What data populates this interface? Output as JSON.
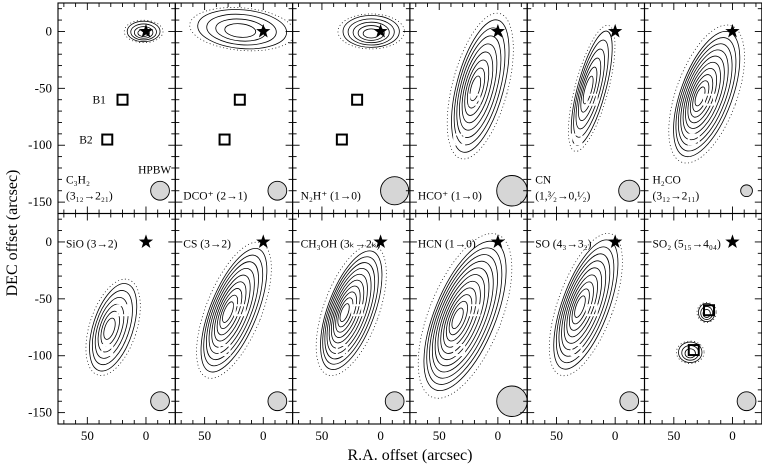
{
  "chart_data": {
    "type": "contour-map-grid",
    "xlabel": "R.A. offset (arcsec)",
    "ylabel": "DEC offset (arcsec)",
    "xlim": [
      75,
      -25
    ],
    "ylim": [
      -160,
      25
    ],
    "x_ticks": [
      50,
      0
    ],
    "y_ticks": [
      0,
      -50,
      -100,
      -150
    ],
    "markers": {
      "star": {
        "x": 0,
        "y": 0
      },
      "B1": {
        "x": 20,
        "y": -60,
        "label": "B1"
      },
      "B2": {
        "x": 33,
        "y": -95,
        "label": "B2"
      },
      "hpbw_label": "HPBW"
    },
    "panels": [
      {
        "molecule": "C₃H₂",
        "transition": "(3₁₂→2₂₁)",
        "beam": 8,
        "show_labels": true,
        "box_color": "black",
        "blobs": [
          {
            "cx": 2,
            "cy": 0,
            "rx": 14,
            "ry": 9,
            "angle": 0,
            "levels": 4
          }
        ]
      },
      {
        "molecule": "DCO⁺",
        "transition": "(2→1)",
        "beam": 8,
        "box_color": "black",
        "blobs": [
          {
            "cx": 18,
            "cy": 2,
            "rx": 38,
            "ry": 17,
            "angle": 5,
            "levels": 4
          }
        ]
      },
      {
        "molecule": "N₂H⁺",
        "transition": "(1→0)",
        "beam": 12,
        "box_color": "black",
        "blobs": [
          {
            "cx": 8,
            "cy": 0,
            "rx": 24,
            "ry": 14,
            "angle": 0,
            "levels": 5
          }
        ]
      },
      {
        "molecule": "HCO⁺",
        "transition": "(1→0)",
        "beam": 13,
        "box_color": "white",
        "blobs": [
          {
            "cx": 15,
            "cy": -48,
            "rx": 20,
            "ry": 60,
            "angle": 15,
            "levels": 8
          }
        ]
      },
      {
        "molecule": "CN",
        "transition": "(1,³⁄₂→0,¹⁄₂)",
        "beam": 9,
        "box_color": "white",
        "blobs": [
          {
            "cx": 20,
            "cy": -50,
            "rx": 12,
            "ry": 52,
            "angle": 15,
            "levels": 6
          }
        ]
      },
      {
        "molecule": "H₂CO",
        "transition": "(3₁₂→2₁₁)",
        "beam": 5,
        "box_color": "white",
        "blobs": [
          {
            "cx": 22,
            "cy": -55,
            "rx": 22,
            "ry": 58,
            "angle": 20,
            "levels": 10
          }
        ]
      },
      {
        "molecule": "SiO",
        "transition": "(3→2)",
        "beam": 8,
        "box_color": "white",
        "blobs": [
          {
            "cx": 28,
            "cy": -75,
            "rx": 17,
            "ry": 40,
            "angle": 18,
            "levels": 6
          }
        ]
      },
      {
        "molecule": "CS",
        "transition": "(3→2)",
        "beam": 8,
        "box_color": "white",
        "blobs": [
          {
            "cx": 25,
            "cy": -60,
            "rx": 20,
            "ry": 58,
            "angle": 22,
            "levels": 9
          }
        ]
      },
      {
        "molecule": "CH₃OH",
        "transition": "(3ₖ→2ₖ)",
        "beam": 8,
        "box_color": "white",
        "blobs": [
          {
            "cx": 25,
            "cy": -60,
            "rx": 20,
            "ry": 55,
            "angle": 20,
            "levels": 10
          }
        ]
      },
      {
        "molecule": "HCN",
        "transition": "(1→0)",
        "beam": 13,
        "box_color": "white",
        "blobs": [
          {
            "cx": 28,
            "cy": -65,
            "rx": 26,
            "ry": 70,
            "angle": 22,
            "levels": 11
          }
        ]
      },
      {
        "molecule": "SO",
        "transition": "(4₃→3₂)",
        "beam": 8,
        "box_color": "white",
        "blobs": [
          {
            "cx": 25,
            "cy": -55,
            "rx": 20,
            "ry": 60,
            "angle": 20,
            "levels": 9
          }
        ]
      },
      {
        "molecule": "SO₂",
        "transition": "(5₁₅→4₀₄)",
        "beam": 8,
        "box_color": "black",
        "blobs": [
          {
            "cx": 22,
            "cy": -62,
            "rx": 7,
            "ry": 8,
            "angle": 0,
            "levels": 3
          },
          {
            "cx": 36,
            "cy": -97,
            "rx": 10,
            "ry": 9,
            "angle": 0,
            "levels": 3
          }
        ]
      }
    ]
  }
}
